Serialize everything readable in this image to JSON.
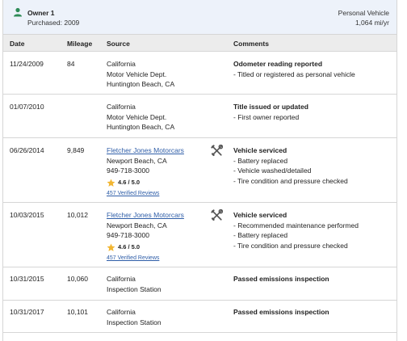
{
  "owner": {
    "title": "Owner 1",
    "purchased": "Purchased: 2009",
    "vehicle_type": "Personal Vehicle",
    "rate": "1,064 mi/yr"
  },
  "columns": {
    "date": "Date",
    "mileage": "Mileage",
    "source": "Source",
    "comments": "Comments"
  },
  "rows": [
    {
      "date": "11/24/2009",
      "mileage": "84",
      "source": [
        "California",
        "Motor Vehicle Dept.",
        "Huntington Beach, CA"
      ],
      "comment_title": "Odometer reading reported",
      "comments": [
        "- Titled or registered as personal vehicle"
      ]
    },
    {
      "date": "01/07/2010",
      "mileage": "",
      "source": [
        "California",
        "Motor Vehicle Dept.",
        "Huntington Beach, CA"
      ],
      "comment_title": "Title issued or updated",
      "comments": [
        "- First owner reported"
      ]
    },
    {
      "date": "06/26/2014",
      "mileage": "9,849",
      "source_link": "Fletcher Jones Motorcars",
      "source": [
        "Newport Beach, CA",
        "949-718-3000"
      ],
      "rating": "4.6 / 5.0",
      "reviews": "457 Verified Reviews",
      "icon": "wrench-screwdriver-icon",
      "comment_title": "Vehicle serviced",
      "comments": [
        "- Battery replaced",
        "- Vehicle washed/detailed",
        "- Tire condition and pressure checked"
      ]
    },
    {
      "date": "10/03/2015",
      "mileage": "10,012",
      "source_link": "Fletcher Jones Motorcars",
      "source": [
        "Newport Beach, CA",
        "949-718-3000"
      ],
      "rating": "4.6 / 5.0",
      "reviews": "457 Verified Reviews",
      "icon": "wrench-screwdriver-icon",
      "comment_title": "Vehicle serviced",
      "comments": [
        "- Recommended maintenance performed",
        "- Battery replaced",
        "- Tire condition and pressure checked"
      ]
    },
    {
      "date": "10/31/2015",
      "mileage": "10,060",
      "source": [
        "California",
        "Inspection Station"
      ],
      "comment_title": "Passed emissions inspection",
      "comments": []
    },
    {
      "date": "10/31/2017",
      "mileage": "10,101",
      "source": [
        "California",
        "Inspection Station"
      ],
      "comment_title": "Passed emissions inspection",
      "comments": []
    }
  ],
  "colors": {
    "header_bg": "#edf2fa",
    "thead_bg": "#ececec",
    "link": "#2f5ea8",
    "star": "#f2b632",
    "person_icon": "#2e8b57"
  }
}
